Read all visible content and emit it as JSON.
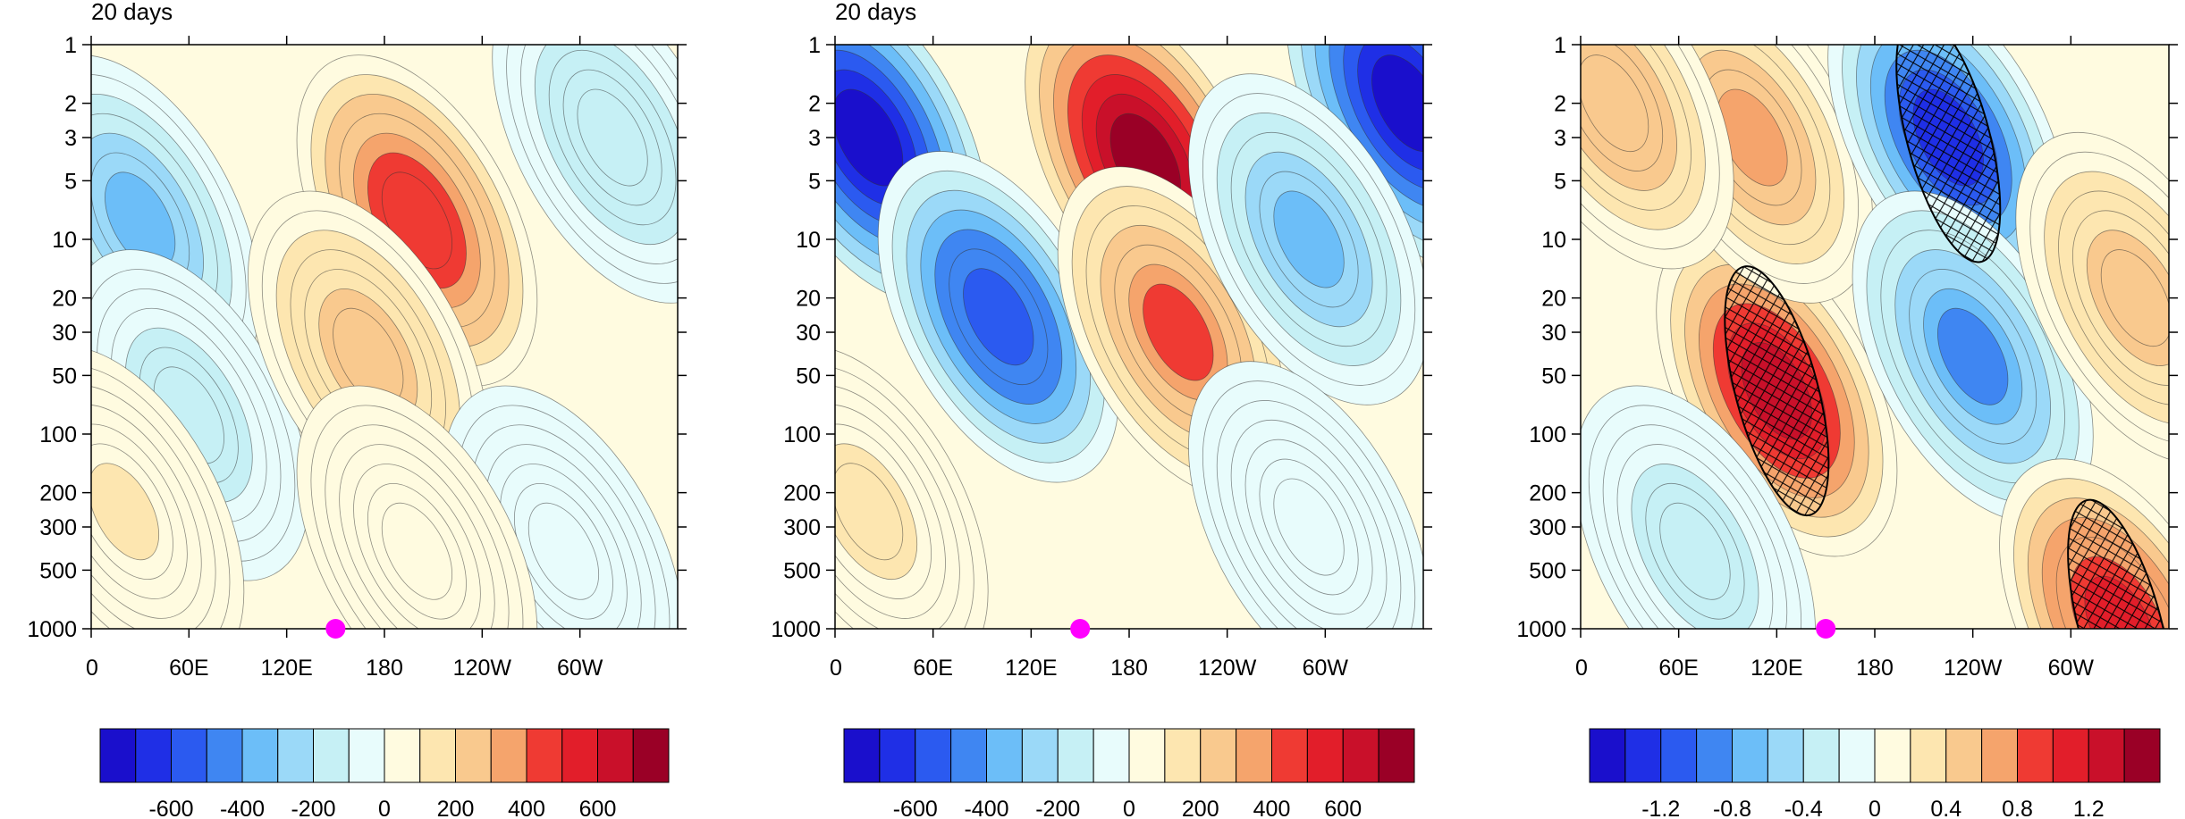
{
  "chart_data": [
    {
      "type": "heatmap",
      "title": "20 days",
      "x_tick_labels": [
        "0",
        "60E",
        "120E",
        "180",
        "120W",
        "60W"
      ],
      "x_range_deg": [
        0,
        360
      ],
      "y_scale": "log",
      "y_tick_labels": [
        "1",
        "2",
        "3",
        "5",
        "10",
        "20",
        "30",
        "50",
        "100",
        "200",
        "300",
        "500",
        "1000"
      ],
      "y_range": [
        1,
        1000
      ],
      "marker": {
        "lon": 150,
        "lev": 1000,
        "color": "#ff00ff"
      },
      "colorbar": {
        "tick_labels": [
          "-600",
          "-400",
          "-200",
          "0",
          "200",
          "400",
          "600"
        ],
        "levels": [
          -700,
          -600,
          -500,
          -400,
          -300,
          -200,
          -100,
          0,
          100,
          200,
          300,
          400,
          500,
          600,
          700
        ],
        "colors": [
          "#1a0fcc",
          "#1f2fe6",
          "#2b5af0",
          "#3f86f2",
          "#6cbef8",
          "#9bd9f8",
          "#c6f0f5",
          "#e8fcfc",
          "#fffbe0",
          "#fde6b0",
          "#f9c98e",
          "#f5a46c",
          "#ef3a33",
          "#e21e2a",
          "#c9102a",
          "#9a0026"
        ]
      },
      "fields": [
        {
          "lon": 30,
          "lev": 8,
          "value": -320
        },
        {
          "lon": 60,
          "lev": 80,
          "value": -150
        },
        {
          "lon": 200,
          "lev": 8,
          "value": 480
        },
        {
          "lon": 170,
          "lev": 40,
          "value": 250
        },
        {
          "lon": 320,
          "lev": 3,
          "value": -180
        },
        {
          "lon": 290,
          "lev": 400,
          "value": -90
        },
        {
          "lon": 20,
          "lev": 250,
          "value": 110
        },
        {
          "lon": 200,
          "lev": 400,
          "value": 30
        }
      ]
    },
    {
      "type": "heatmap",
      "title": "20 days",
      "x_tick_labels": [
        "0",
        "60E",
        "120E",
        "180",
        "120W",
        "60W"
      ],
      "x_range_deg": [
        0,
        360
      ],
      "y_scale": "log",
      "y_tick_labels": [
        "1",
        "2",
        "3",
        "5",
        "10",
        "20",
        "30",
        "50",
        "100",
        "200",
        "300",
        "500",
        "1000"
      ],
      "y_range": [
        1,
        1000
      ],
      "marker": {
        "lon": 150,
        "lev": 1000,
        "color": "#ff00ff"
      },
      "colorbar": {
        "tick_labels": [
          "-600",
          "-400",
          "-200",
          "0",
          "200",
          "400",
          "600"
        ],
        "levels": [
          -700,
          -600,
          -500,
          -400,
          -300,
          -200,
          -100,
          0,
          100,
          200,
          300,
          400,
          500,
          600,
          700
        ],
        "colors": [
          "#1a0fcc",
          "#1f2fe6",
          "#2b5af0",
          "#3f86f2",
          "#6cbef8",
          "#9bd9f8",
          "#c6f0f5",
          "#e8fcfc",
          "#fffbe0",
          "#fde6b0",
          "#f9c98e",
          "#f5a46c",
          "#ef3a33",
          "#e21e2a",
          "#c9102a",
          "#9a0026"
        ]
      },
      "fields": [
        {
          "lon": 20,
          "lev": 3,
          "value": -720
        },
        {
          "lon": 100,
          "lev": 25,
          "value": -560
        },
        {
          "lon": 190,
          "lev": 4,
          "value": 720
        },
        {
          "lon": 210,
          "lev": 30,
          "value": 420
        },
        {
          "lon": 350,
          "lev": 2,
          "value": -720
        },
        {
          "lon": 290,
          "lev": 10,
          "value": -300
        },
        {
          "lon": 20,
          "lev": 250,
          "value": 120
        },
        {
          "lon": 290,
          "lev": 300,
          "value": -60
        }
      ]
    },
    {
      "type": "heatmap",
      "title": "",
      "x_tick_labels": [
        "0",
        "60E",
        "120E",
        "180",
        "120W",
        "60W"
      ],
      "x_range_deg": [
        0,
        360
      ],
      "y_scale": "log",
      "y_tick_labels": [
        "1",
        "2",
        "3",
        "5",
        "10",
        "20",
        "30",
        "50",
        "100",
        "200",
        "300",
        "500",
        "1000"
      ],
      "y_range": [
        1,
        1000
      ],
      "marker": {
        "lon": 150,
        "lev": 1000,
        "color": "#ff00ff"
      },
      "hatching": "significant regions (cross-hatch)",
      "colorbar": {
        "tick_labels": [
          "-1.2",
          "-0.8",
          "-0.4",
          "0",
          "0.4",
          "0.8",
          "1.2"
        ],
        "levels": [
          -1.4,
          -1.2,
          -1.0,
          -0.8,
          -0.6,
          -0.4,
          -0.2,
          0,
          0.2,
          0.4,
          0.6,
          0.8,
          1.0,
          1.2,
          1.4
        ],
        "colors": [
          "#1a0fcc",
          "#1f2fe6",
          "#2b5af0",
          "#3f86f2",
          "#6cbef8",
          "#9bd9f8",
          "#c6f0f5",
          "#e8fcfc",
          "#fffbe0",
          "#fde6b0",
          "#f9c98e",
          "#f5a46c",
          "#ef3a33",
          "#e21e2a",
          "#c9102a",
          "#9a0026"
        ]
      },
      "fields": [
        {
          "lon": 120,
          "lev": 60,
          "value": 1.3
        },
        {
          "lon": 105,
          "lev": 3,
          "value": 0.7
        },
        {
          "lon": 225,
          "lev": 3,
          "value": -1.3
        },
        {
          "lon": 240,
          "lev": 40,
          "value": -0.8
        },
        {
          "lon": 20,
          "lev": 2,
          "value": 0.6
        },
        {
          "lon": 340,
          "lev": 20,
          "value": 0.5
        },
        {
          "lon": 70,
          "lev": 400,
          "value": -0.3
        },
        {
          "lon": 330,
          "lev": 950,
          "value": 1.1
        }
      ]
    }
  ]
}
